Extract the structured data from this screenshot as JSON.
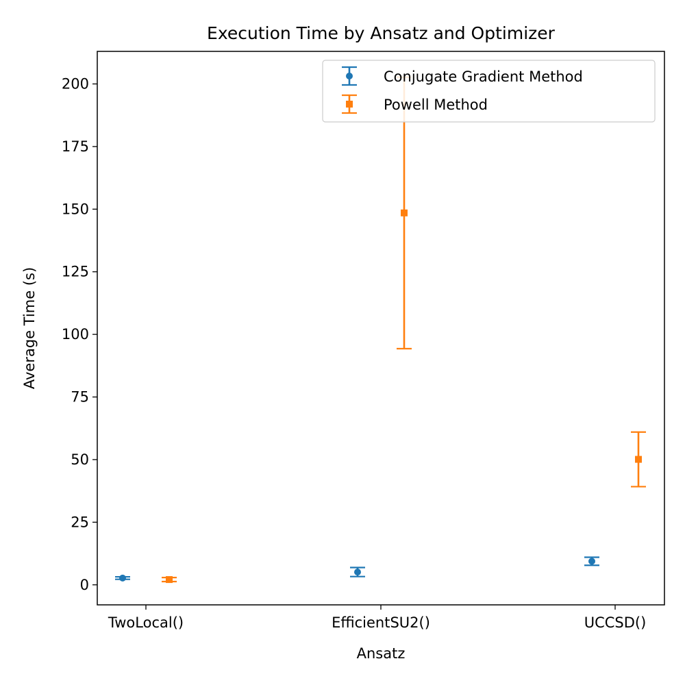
{
  "chart_data": {
    "type": "errorbar",
    "title": "Execution Time by Ansatz and Optimizer",
    "xlabel": "Ansatz",
    "ylabel": "Average Time (s)",
    "categories": [
      "TwoLocal()",
      "EfficientSU2()",
      "UCCSD()"
    ],
    "ylim": [
      -8,
      213
    ],
    "yticks": [
      0,
      25,
      50,
      75,
      100,
      125,
      150,
      175,
      200
    ],
    "grid": false,
    "legend_position": "top-right",
    "series": [
      {
        "name": "Conjugate Gradient Method",
        "color": "#1f77b4",
        "marker": "circle",
        "values": [
          2.7,
          5.1,
          9.4
        ],
        "errors": [
          0.5,
          1.8,
          1.6
        ]
      },
      {
        "name": "Powell Method",
        "color": "#ff7f0e",
        "marker": "square",
        "values": [
          2.1,
          148.5,
          50.1
        ],
        "errors": [
          0.8,
          54.2,
          10.9
        ]
      }
    ]
  }
}
